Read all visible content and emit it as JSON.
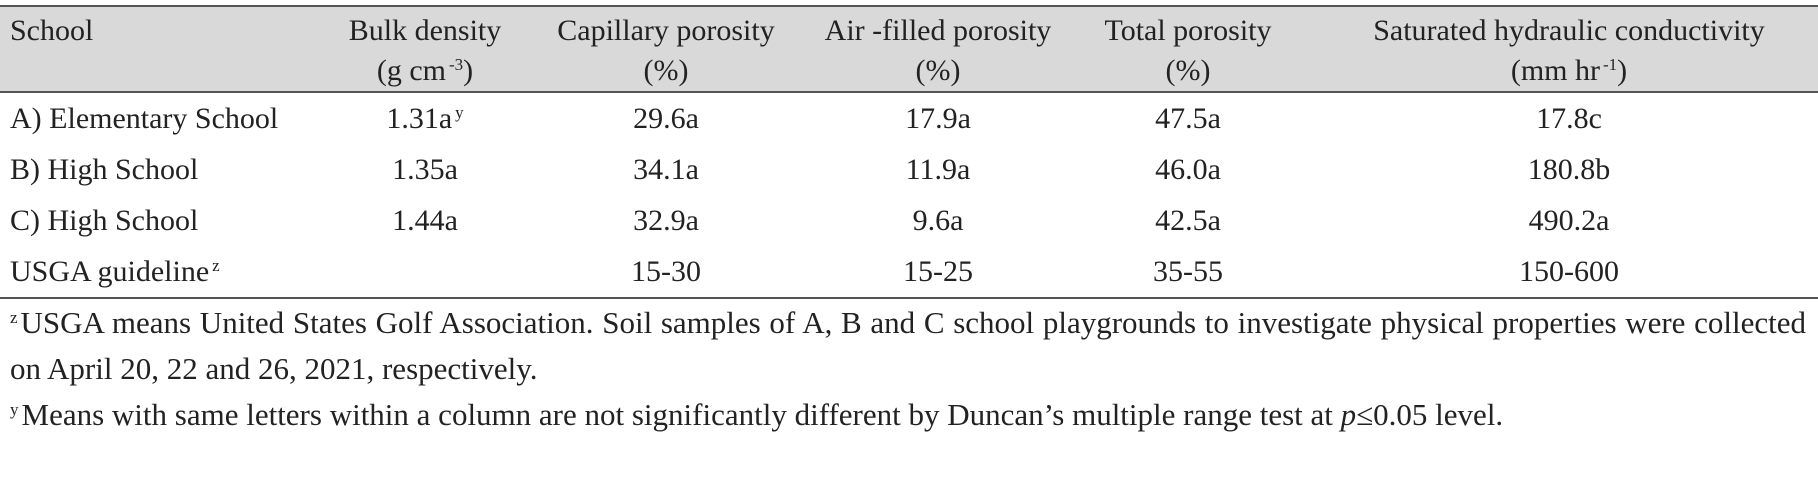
{
  "table": {
    "headers": [
      {
        "label": "School"
      },
      {
        "label": "Bulk density",
        "unit": [
          "(g cm",
          "-3",
          ")"
        ]
      },
      {
        "label": "Capillary porosity",
        "unit": [
          "(%)"
        ]
      },
      {
        "label": "Air -filled porosity",
        "unit": [
          "(%)"
        ]
      },
      {
        "label": "Total porosity",
        "unit": [
          "(%)"
        ]
      },
      {
        "label": "Saturated hydraulic conductivity",
        "unit": [
          "(mm hr",
          "-1",
          ")"
        ]
      }
    ],
    "rows": [
      [
        {
          "text": "A) Elementary School"
        },
        {
          "text": "1.31a",
          "sup": "y"
        },
        {
          "text": "29.6a"
        },
        {
          "text": "17.9a"
        },
        {
          "text": "47.5a"
        },
        {
          "text": "17.8c"
        }
      ],
      [
        {
          "text": "B) High School"
        },
        {
          "text": "1.35a"
        },
        {
          "text": "34.1a"
        },
        {
          "text": "11.9a"
        },
        {
          "text": "46.0a"
        },
        {
          "text": "180.8b"
        }
      ],
      [
        {
          "text": "C) High School"
        },
        {
          "text": "1.44a"
        },
        {
          "text": "32.9a"
        },
        {
          "text": "9.6a"
        },
        {
          "text": "42.5a"
        },
        {
          "text": "490.2a"
        }
      ],
      [
        {
          "text": "USGA guideline",
          "sup": "z"
        },
        null,
        {
          "text": "15-30"
        },
        {
          "text": "15-25"
        },
        {
          "text": "35-55"
        },
        {
          "text": "150-600"
        }
      ]
    ],
    "footnotes": [
      {
        "mark": "z",
        "parts": [
          "USGA means United States Golf Association. Soil samples of A, B and C school playgrounds to investigate physical properties were collected on April 20, 22 and 26, 2021, respectively."
        ]
      },
      {
        "mark": "y",
        "parts": [
          "Means with same letters within a column are not significantly different by Duncan’s multiple range test at ",
          "p",
          "≤0.05 level."
        ]
      }
    ]
  }
}
